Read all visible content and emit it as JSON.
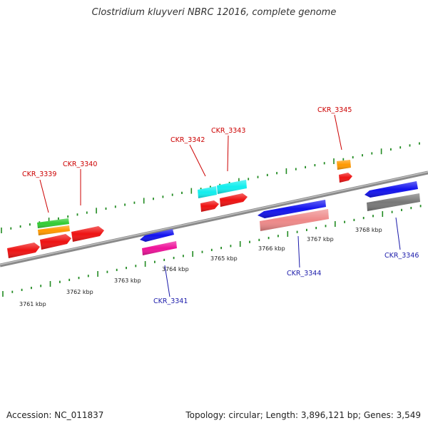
{
  "title": "Clostridium kluyveri NBRC 12016, complete genome",
  "footer": {
    "accession": "Accession: NC_011837",
    "summary": "Topology: circular; Length: 3,896,121 bp; Genes: 3,549"
  },
  "colors": {
    "plus_label": "#cc0000",
    "minus_label": "#1a1aaa",
    "tick": "#228b22",
    "backbone": "#8a8a8a"
  },
  "kbp_labels": [
    "3761 kbp",
    "3762 kbp",
    "3763 kbp",
    "3764 kbp",
    "3765 kbp",
    "3766 kbp",
    "3767 kbp",
    "3768 kbp"
  ],
  "gene_labels": [
    {
      "text": "CKR_3339",
      "strand": "plus"
    },
    {
      "text": "CKR_3340",
      "strand": "plus"
    },
    {
      "text": "CKR_3342",
      "strand": "plus"
    },
    {
      "text": "CKR_3343",
      "strand": "plus"
    },
    {
      "text": "CKR_3345",
      "strand": "plus"
    },
    {
      "text": "CKR_3341",
      "strand": "minus"
    },
    {
      "text": "CKR_3344",
      "strand": "minus"
    },
    {
      "text": "CKR_3346",
      "strand": "minus"
    }
  ],
  "features": [
    {
      "name": "feature-green",
      "color": "#33cc33"
    },
    {
      "name": "feature-orange",
      "color": "#ff9900"
    },
    {
      "name": "feature-red",
      "color": "#ee1111"
    },
    {
      "name": "feature-blue",
      "color": "#1111ee"
    },
    {
      "name": "feature-magenta",
      "color": "#ee1199"
    },
    {
      "name": "feature-cyan",
      "color": "#11eeee"
    },
    {
      "name": "feature-salmon",
      "color": "#ee8888"
    },
    {
      "name": "feature-gray",
      "color": "#777777"
    }
  ]
}
